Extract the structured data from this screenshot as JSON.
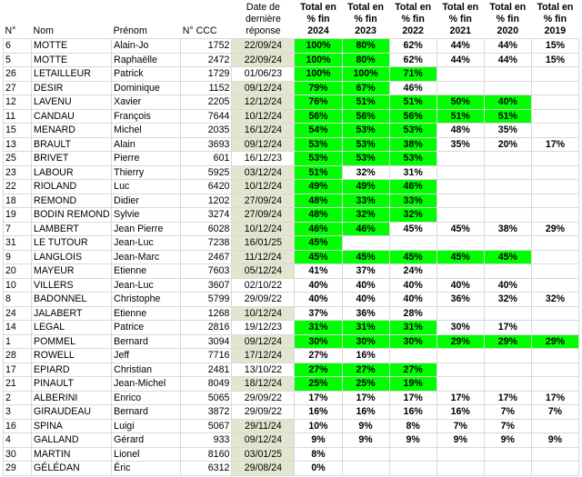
{
  "headers": {
    "no": "N°",
    "nom": "Nom",
    "prenom": "Prénom",
    "ccc": "N° CCC",
    "date": [
      "Date de",
      "dernière",
      "réponse"
    ],
    "y2024": [
      "Total en",
      "% fin",
      "2024"
    ],
    "y2023": [
      "Total en",
      "% fin",
      "2023"
    ],
    "y2022": [
      "Total en",
      "% fin",
      "2022"
    ],
    "y2021": [
      "Total en",
      "% fin",
      "2021"
    ],
    "y2020": [
      "Total en",
      "% fin",
      "2020"
    ],
    "y2019": [
      "Total en",
      "% fin",
      "2019"
    ]
  },
  "colors": {
    "green_highlight": "#00ff00",
    "olive_date": "#e2e6cf",
    "red_text": "#ff0000",
    "yellow_text": "#ffff00",
    "blue_text": "#1f1fff"
  },
  "rows": [
    {
      "no": "6",
      "nom": "MOTTE",
      "prenom": "Alain-Jo",
      "ccc": "1752",
      "date": "22/09/24",
      "date_bg": "olive",
      "y": [
        {
          "v": "100%",
          "bg": "green",
          "fg": "red"
        },
        {
          "v": "80%",
          "bg": "green",
          "fg": "yellow"
        },
        {
          "v": "62%"
        },
        {
          "v": "44%"
        },
        {
          "v": "44%"
        },
        {
          "v": "15%"
        }
      ]
    },
    {
      "no": "5",
      "nom": "MOTTE",
      "prenom": "Raphaëlle",
      "ccc": "2472",
      "date": "22/09/24",
      "date_bg": "olive",
      "y": [
        {
          "v": "100%",
          "bg": "green",
          "fg": "red"
        },
        {
          "v": "80%",
          "bg": "green",
          "fg": "yellow"
        },
        {
          "v": "62%"
        },
        {
          "v": "44%"
        },
        {
          "v": "44%"
        },
        {
          "v": "15%"
        }
      ]
    },
    {
      "no": "26",
      "nom": "LETAILLEUR",
      "prenom": "Patrick",
      "ccc": "1729",
      "date": "01/06/23",
      "date_bg": "",
      "y": [
        {
          "v": "100%",
          "bg": "green",
          "fg": "red"
        },
        {
          "v": "100%",
          "bg": "green",
          "fg": "red"
        },
        {
          "v": "71%",
          "bg": "green",
          "fg": "yellow"
        },
        {
          "v": ""
        },
        {
          "v": ""
        },
        {
          "v": ""
        }
      ]
    },
    {
      "no": "27",
      "nom": "DESIR",
      "prenom": "Dominique",
      "ccc": "1152",
      "date": "09/12/24",
      "date_bg": "olive",
      "y": [
        {
          "v": "79%",
          "bg": "green",
          "fg": "blue"
        },
        {
          "v": "67%",
          "bg": "green",
          "fg": "yellow"
        },
        {
          "v": "46%"
        },
        {
          "v": ""
        },
        {
          "v": ""
        },
        {
          "v": ""
        }
      ]
    },
    {
      "no": "12",
      "nom": "LAVENU",
      "prenom": "Xavier",
      "ccc": "2205",
      "date": "12/12/24",
      "date_bg": "olive",
      "y": [
        {
          "v": "76%",
          "bg": "green",
          "fg": "yellow"
        },
        {
          "v": "51%",
          "bg": "green",
          "fg": "yellow"
        },
        {
          "v": "51%",
          "bg": "green",
          "fg": "yellow"
        },
        {
          "v": "50%",
          "bg": "green",
          "fg": "yellow"
        },
        {
          "v": "40%",
          "bg": "green"
        },
        {
          "v": ""
        }
      ]
    },
    {
      "no": "11",
      "nom": "CANDAU",
      "prenom": "François",
      "ccc": "7644",
      "date": "10/12/24",
      "date_bg": "olive",
      "y": [
        {
          "v": "56%",
          "bg": "green"
        },
        {
          "v": "56%",
          "bg": "green"
        },
        {
          "v": "56%",
          "bg": "green"
        },
        {
          "v": "51%",
          "bg": "green"
        },
        {
          "v": "51%",
          "bg": "green"
        },
        {
          "v": ""
        }
      ]
    },
    {
      "no": "15",
      "nom": "MENARD",
      "prenom": "Michel",
      "ccc": "2035",
      "date": "16/12/24",
      "date_bg": "olive",
      "y": [
        {
          "v": "54%",
          "bg": "green",
          "fg": "yellow"
        },
        {
          "v": "53%",
          "bg": "green"
        },
        {
          "v": "53%",
          "bg": "green"
        },
        {
          "v": "48%"
        },
        {
          "v": "35%"
        },
        {
          "v": ""
        }
      ]
    },
    {
      "no": "13",
      "nom": "BRAULT",
      "prenom": "Alain",
      "ccc": "3693",
      "date": "09/12/24",
      "date_bg": "olive",
      "y": [
        {
          "v": "53%",
          "bg": "green",
          "fg": "yellow"
        },
        {
          "v": "53%",
          "bg": "green",
          "fg": "yellow"
        },
        {
          "v": "38%",
          "bg": "green"
        },
        {
          "v": "35%"
        },
        {
          "v": "20%"
        },
        {
          "v": "17%"
        }
      ]
    },
    {
      "no": "25",
      "nom": "BRIVET",
      "prenom": "Pierre",
      "ccc": "601",
      "date": "16/12/23",
      "date_bg": "",
      "y": [
        {
          "v": "53%",
          "bg": "green"
        },
        {
          "v": "53%",
          "bg": "green"
        },
        {
          "v": "53%",
          "bg": "green"
        },
        {
          "v": ""
        },
        {
          "v": ""
        },
        {
          "v": ""
        }
      ]
    },
    {
      "no": "23",
      "nom": "LABOUR",
      "prenom": "Thierry",
      "ccc": "5925",
      "date": "03/12/24",
      "date_bg": "olive",
      "y": [
        {
          "v": "51%",
          "bg": "green"
        },
        {
          "v": "32%"
        },
        {
          "v": "31%"
        },
        {
          "v": ""
        },
        {
          "v": ""
        },
        {
          "v": ""
        }
      ]
    },
    {
      "no": "22",
      "nom": "RIOLAND",
      "prenom": "Luc",
      "ccc": "6420",
      "date": "10/12/24",
      "date_bg": "olive",
      "y": [
        {
          "v": "49%",
          "bg": "green"
        },
        {
          "v": "49%",
          "bg": "green"
        },
        {
          "v": "46%",
          "bg": "green"
        },
        {
          "v": ""
        },
        {
          "v": ""
        },
        {
          "v": ""
        }
      ]
    },
    {
      "no": "18",
      "nom": "REMOND",
      "prenom": "Didier",
      "ccc": "1202",
      "date": "27/09/24",
      "date_bg": "olive",
      "y": [
        {
          "v": "48%",
          "bg": "green"
        },
        {
          "v": "33%",
          "bg": "green"
        },
        {
          "v": "33%",
          "bg": "green"
        },
        {
          "v": ""
        },
        {
          "v": ""
        },
        {
          "v": ""
        }
      ]
    },
    {
      "no": "19",
      "nom": "BODIN REMOND",
      "prenom": "Sylvie",
      "ccc": "3274",
      "date": "27/09/24",
      "date_bg": "olive",
      "y": [
        {
          "v": "48%",
          "bg": "green"
        },
        {
          "v": "32%",
          "bg": "green"
        },
        {
          "v": "32%",
          "bg": "green"
        },
        {
          "v": ""
        },
        {
          "v": ""
        },
        {
          "v": ""
        }
      ]
    },
    {
      "no": "7",
      "nom": "LAMBERT",
      "prenom": "Jean Pierre",
      "ccc": "6028",
      "date": "10/12/24",
      "date_bg": "olive",
      "y": [
        {
          "v": "46%",
          "bg": "green"
        },
        {
          "v": "46%",
          "bg": "green"
        },
        {
          "v": "45%"
        },
        {
          "v": "45%"
        },
        {
          "v": "38%"
        },
        {
          "v": "29%"
        }
      ]
    },
    {
      "no": "31",
      "nom": "LE TUTOUR",
      "prenom": "Jean-Luc",
      "ccc": "7238",
      "date": "16/01/25",
      "date_bg": "olive",
      "y": [
        {
          "v": "45%",
          "bg": "green"
        },
        {
          "v": ""
        },
        {
          "v": ""
        },
        {
          "v": ""
        },
        {
          "v": ""
        },
        {
          "v": ""
        }
      ]
    },
    {
      "no": "9",
      "nom": "LANGLOIS",
      "prenom": "Jean-Marc",
      "ccc": "2467",
      "date": "11/12/24",
      "date_bg": "olive",
      "y": [
        {
          "v": "45%",
          "bg": "green"
        },
        {
          "v": "45%",
          "bg": "green"
        },
        {
          "v": "45%",
          "bg": "green"
        },
        {
          "v": "45%",
          "bg": "green"
        },
        {
          "v": "45%",
          "bg": "green"
        },
        {
          "v": ""
        }
      ]
    },
    {
      "no": "20",
      "nom": "MAYEUR",
      "prenom": "Etienne",
      "ccc": "7603",
      "date": "05/12/24",
      "date_bg": "olive",
      "y": [
        {
          "v": "41%"
        },
        {
          "v": "37%"
        },
        {
          "v": "24%"
        },
        {
          "v": ""
        },
        {
          "v": ""
        },
        {
          "v": ""
        }
      ]
    },
    {
      "no": "10",
      "nom": "VILLERS",
      "prenom": "Jean-Luc",
      "ccc": "3607",
      "date": "02/10/22",
      "date_bg": "",
      "y": [
        {
          "v": "40%"
        },
        {
          "v": "40%"
        },
        {
          "v": "40%"
        },
        {
          "v": "40%"
        },
        {
          "v": "40%"
        },
        {
          "v": ""
        }
      ]
    },
    {
      "no": "8",
      "nom": "BADONNEL",
      "prenom": "Christophe",
      "ccc": "5799",
      "date": "29/09/22",
      "date_bg": "",
      "y": [
        {
          "v": "40%"
        },
        {
          "v": "40%"
        },
        {
          "v": "40%"
        },
        {
          "v": "36%"
        },
        {
          "v": "32%"
        },
        {
          "v": "32%"
        }
      ]
    },
    {
      "no": "24",
      "nom": "JALABERT",
      "prenom": "Etienne",
      "ccc": "1268",
      "date": "10/12/24",
      "date_bg": "olive",
      "y": [
        {
          "v": "37%"
        },
        {
          "v": "36%"
        },
        {
          "v": "28%"
        },
        {
          "v": ""
        },
        {
          "v": ""
        },
        {
          "v": ""
        }
      ]
    },
    {
      "no": "14",
      "nom": "LEGAL",
      "prenom": "Patrice",
      "ccc": "2816",
      "date": "19/12/23",
      "date_bg": "",
      "y": [
        {
          "v": "31%",
          "bg": "green"
        },
        {
          "v": "31%",
          "bg": "green"
        },
        {
          "v": "31%",
          "bg": "green"
        },
        {
          "v": "30%"
        },
        {
          "v": "17%"
        },
        {
          "v": ""
        }
      ]
    },
    {
      "no": "1",
      "nom": "POMMEL",
      "prenom": "Bernard",
      "ccc": "3094",
      "date": "09/12/24",
      "date_bg": "olive",
      "y": [
        {
          "v": "30%",
          "bg": "green"
        },
        {
          "v": "30%",
          "bg": "green"
        },
        {
          "v": "30%",
          "bg": "green"
        },
        {
          "v": "29%",
          "bg": "green"
        },
        {
          "v": "29%",
          "bg": "green"
        },
        {
          "v": "29%",
          "bg": "green"
        }
      ]
    },
    {
      "no": "28",
      "nom": "ROWELL",
      "prenom": "Jeff",
      "ccc": "7716",
      "date": "17/12/24",
      "date_bg": "olive",
      "y": [
        {
          "v": "27%"
        },
        {
          "v": "16%"
        },
        {
          "v": ""
        },
        {
          "v": ""
        },
        {
          "v": ""
        },
        {
          "v": ""
        }
      ]
    },
    {
      "no": "17",
      "nom": "EPIARD",
      "prenom": "Christian",
      "ccc": "2481",
      "date": "13/10/22",
      "date_bg": "",
      "y": [
        {
          "v": "27%",
          "bg": "green"
        },
        {
          "v": "27%",
          "bg": "green"
        },
        {
          "v": "27%",
          "bg": "green"
        },
        {
          "v": ""
        },
        {
          "v": ""
        },
        {
          "v": ""
        }
      ]
    },
    {
      "no": "21",
      "nom": "PINAULT",
      "prenom": "Jean-Michel",
      "ccc": "8049",
      "date": "18/12/24",
      "date_bg": "olive",
      "y": [
        {
          "v": "25%",
          "bg": "green"
        },
        {
          "v": "25%",
          "bg": "green"
        },
        {
          "v": "19%",
          "bg": "green"
        },
        {
          "v": ""
        },
        {
          "v": ""
        },
        {
          "v": ""
        }
      ]
    },
    {
      "no": "2",
      "nom": "ALBERINI",
      "prenom": "Enrico",
      "ccc": "5065",
      "date": "29/09/22",
      "date_bg": "",
      "y": [
        {
          "v": "17%"
        },
        {
          "v": "17%"
        },
        {
          "v": "17%"
        },
        {
          "v": "17%"
        },
        {
          "v": "17%"
        },
        {
          "v": "17%"
        }
      ]
    },
    {
      "no": "3",
      "nom": "GIRAUDEAU",
      "prenom": "Bernard",
      "ccc": "3872",
      "date": "29/09/22",
      "date_bg": "",
      "y": [
        {
          "v": "16%"
        },
        {
          "v": "16%"
        },
        {
          "v": "16%"
        },
        {
          "v": "16%"
        },
        {
          "v": "7%"
        },
        {
          "v": "7%"
        }
      ]
    },
    {
      "no": "16",
      "nom": "SPINA",
      "prenom": "Luigi",
      "ccc": "5067",
      "date": "29/11/24",
      "date_bg": "olive",
      "y": [
        {
          "v": "10%"
        },
        {
          "v": "9%"
        },
        {
          "v": "8%"
        },
        {
          "v": "7%"
        },
        {
          "v": "7%"
        },
        {
          "v": ""
        }
      ]
    },
    {
      "no": "4",
      "nom": "GALLAND",
      "prenom": "Gérard",
      "ccc": "933",
      "date": "09/12/24",
      "date_bg": "olive",
      "y": [
        {
          "v": "9%"
        },
        {
          "v": "9%"
        },
        {
          "v": "9%"
        },
        {
          "v": "9%"
        },
        {
          "v": "9%"
        },
        {
          "v": "9%"
        }
      ]
    },
    {
      "no": "30",
      "nom": "MARTIN",
      "prenom": "Lionel",
      "ccc": "8160",
      "date": "03/01/25",
      "date_bg": "olive",
      "y": [
        {
          "v": "8%"
        },
        {
          "v": ""
        },
        {
          "v": ""
        },
        {
          "v": ""
        },
        {
          "v": ""
        },
        {
          "v": ""
        }
      ]
    },
    {
      "no": "29",
      "nom": "GÉLÉDAN",
      "prenom": "Éric",
      "ccc": "6312",
      "date": "29/08/24",
      "date_bg": "olive",
      "y": [
        {
          "v": "0%"
        },
        {
          "v": ""
        },
        {
          "v": ""
        },
        {
          "v": ""
        },
        {
          "v": ""
        },
        {
          "v": ""
        }
      ]
    }
  ]
}
